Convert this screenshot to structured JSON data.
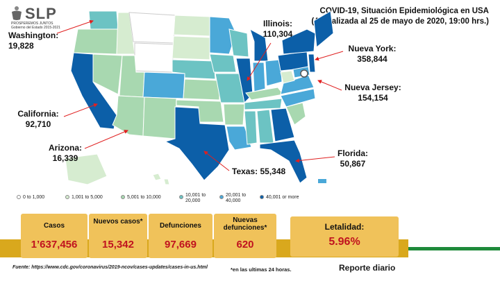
{
  "logo": {
    "name": "SLP",
    "tagline_1": "PROSPEREMOS JUNTOS",
    "tagline_2": "Gobierno del Estado 2015-2021"
  },
  "header": {
    "title": "COVID-19, Situación Epidemiológica en USA",
    "subtitle": "(Actualizada al 25 de mayo de 2020, 19:00 hrs.)"
  },
  "callouts": {
    "washington": {
      "state": "Washington:",
      "cases": "19,828"
    },
    "illinois": {
      "state": "Illinois:",
      "cases": "110,304"
    },
    "new_york": {
      "state": "Nueva York:",
      "cases": "358,844"
    },
    "new_jersey": {
      "state": "Nueva Jersey:",
      "cases": "154,154"
    },
    "california": {
      "state": "California:",
      "cases": "92,710"
    },
    "arizona": {
      "state": "Arizona:",
      "cases": "16,339"
    },
    "texas": {
      "label": "Texas: 55,348"
    },
    "florida": {
      "state": "Florida:",
      "cases": "50,867"
    }
  },
  "legend": [
    {
      "label": "0 to 1,000",
      "color": "#ffffff"
    },
    {
      "label": "1,001 to 5,000",
      "color": "#d6ecd0"
    },
    {
      "label": "5,001 to 10,000",
      "color": "#a8d8b0"
    },
    {
      "label_1": "10,001 to",
      "label_2": "20,000",
      "color": "#6cc3c3"
    },
    {
      "label_1": "20,001 to",
      "label_2": "40,000",
      "color": "#4aa8d8"
    },
    {
      "label": "40,001 or more",
      "color": "#0c5fa8"
    }
  ],
  "stats": {
    "cases": {
      "label": "Casos",
      "value": "1’637,456"
    },
    "new_cases": {
      "label": "Nuevos casos*",
      "value": "15,342"
    },
    "deaths": {
      "label": "Defunciones",
      "value": "97,669"
    },
    "new_deaths": {
      "label_1": "Nuevas",
      "label_2": "defunciones*",
      "value": "620"
    },
    "lethality": {
      "label": "Letalidad:",
      "value": "5.96%"
    }
  },
  "footer": {
    "source": "Fuente: https://www.cdc.gov/coronavirus/2019-ncov/cases-updates/cases-in-us.html",
    "note": "*en las ultimas 24 horas.",
    "report": "Reporte diario"
  },
  "colors": {
    "gold": "#d9a81d",
    "tile": "#f0c25a",
    "red": "#c0121f",
    "green": "#1e8a3a",
    "dark_blue": "#0c5fa8"
  }
}
